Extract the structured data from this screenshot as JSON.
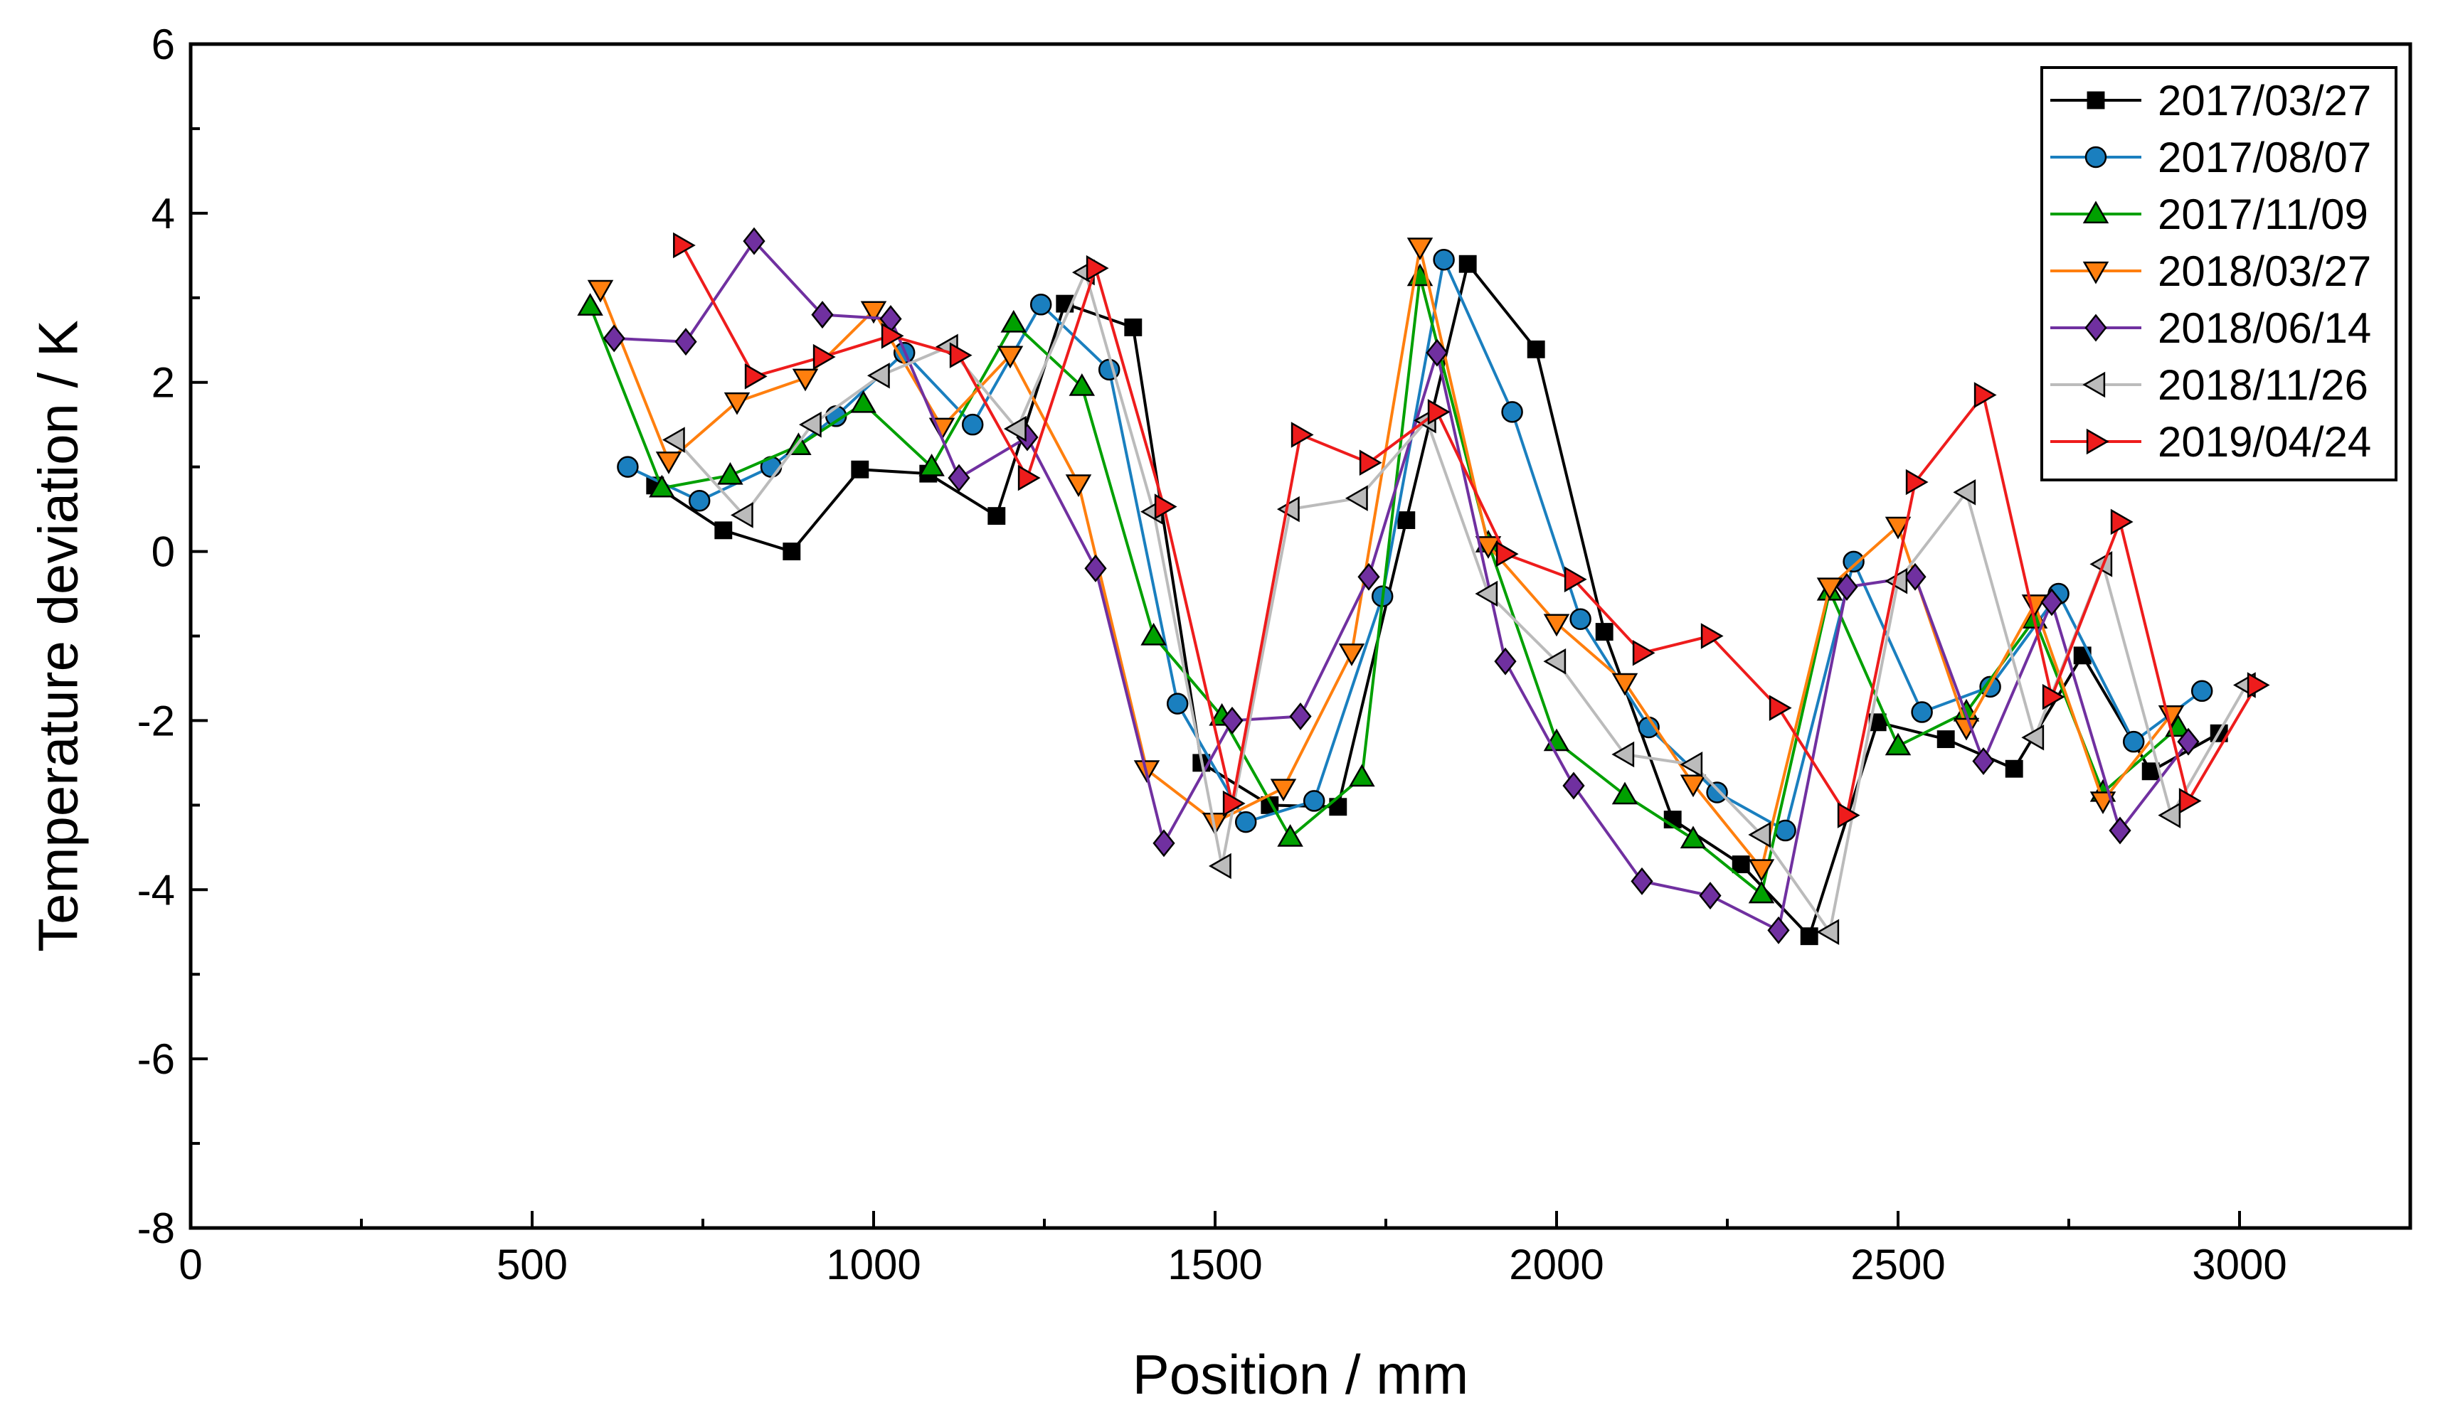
{
  "chart_data": {
    "type": "line",
    "xlabel": "Position / mm",
    "ylabel": "Temperature deviation / K",
    "xlim": [
      0,
      3250
    ],
    "ylim": [
      -8,
      6
    ],
    "xticks": [
      0,
      500,
      1000,
      1500,
      2000,
      2500,
      3000
    ],
    "yticks": [
      -8,
      -6,
      -4,
      -2,
      0,
      2,
      4,
      6
    ],
    "xtick_labels": [
      "0",
      "500",
      "1000",
      "1500",
      "2000",
      "2500",
      "3000"
    ],
    "ytick_labels": [
      "-8",
      "-6",
      "-4",
      "-2",
      "0",
      "2",
      "4",
      "6"
    ],
    "legend_position": "top-right",
    "series": [
      {
        "name": "2017/03/27",
        "color": "#000000",
        "marker": "square",
        "x": [
          680,
          780,
          880,
          980,
          1080,
          1180,
          1280,
          1380,
          1480,
          1580,
          1680,
          1780,
          1870,
          1970,
          2070,
          2170,
          2270,
          2370,
          2470,
          2570,
          2670,
          2770,
          2870,
          2970
        ],
        "y": [
          0.78,
          0.25,
          0.0,
          0.97,
          0.92,
          0.42,
          2.93,
          2.65,
          -2.5,
          -3.0,
          -3.02,
          0.37,
          3.4,
          2.39,
          -0.95,
          -3.17,
          -3.7,
          -4.55,
          -2.02,
          -2.22,
          -2.57,
          -1.23,
          -2.6,
          -2.15
        ]
      },
      {
        "name": "2017/08/07",
        "color": "#1a7fbf",
        "marker": "circle",
        "x": [
          640,
          745,
          850,
          945,
          1045,
          1145,
          1245,
          1345,
          1445,
          1545,
          1645,
          1745,
          1835,
          1935,
          2035,
          2135,
          2235,
          2335,
          2435,
          2535,
          2635,
          2735,
          2845,
          2945
        ],
        "y": [
          1.0,
          0.6,
          1.0,
          1.6,
          2.35,
          1.5,
          2.92,
          2.15,
          -1.8,
          -3.2,
          -2.95,
          -0.53,
          3.45,
          1.65,
          -0.8,
          -2.08,
          -2.85,
          -3.3,
          -0.12,
          -1.9,
          -1.6,
          -0.5,
          -2.25,
          -1.65
        ]
      },
      {
        "name": "2017/11/09",
        "color": "#00a000",
        "marker": "triangle-up",
        "x": [
          585,
          690,
          790,
          890,
          985,
          1085,
          1205,
          1305,
          1410,
          1510,
          1610,
          1715,
          1800,
          1900,
          2000,
          2100,
          2200,
          2300,
          2400,
          2500,
          2600,
          2700,
          2800,
          2910
        ],
        "y": [
          2.9,
          0.75,
          0.9,
          1.25,
          1.75,
          1.0,
          2.7,
          1.95,
          -1.0,
          -1.95,
          -3.38,
          -2.67,
          3.25,
          0.1,
          -2.25,
          -2.88,
          -3.4,
          -4.05,
          -0.47,
          -2.3,
          -1.9,
          -0.8,
          -2.85,
          -2.08
        ]
      },
      {
        "name": "2018/03/27",
        "color": "#ff7f0e",
        "marker": "triangle-down",
        "x": [
          600,
          700,
          800,
          900,
          1000,
          1100,
          1200,
          1300,
          1400,
          1500,
          1600,
          1700,
          1800,
          1900,
          2000,
          2100,
          2200,
          2300,
          2400,
          2500,
          2600,
          2700,
          2800,
          2900
        ],
        "y": [
          3.1,
          1.07,
          1.77,
          2.05,
          2.85,
          1.47,
          2.32,
          0.8,
          -2.58,
          -3.2,
          -2.8,
          -1.2,
          3.6,
          0.07,
          -0.85,
          -1.55,
          -2.75,
          -3.75,
          -0.42,
          0.3,
          -2.08,
          -0.62,
          -2.95,
          -1.93
        ]
      },
      {
        "name": "2018/06/14",
        "color": "#7030a0",
        "marker": "diamond",
        "x": [
          620,
          725,
          825,
          925,
          1025,
          1125,
          1225,
          1325,
          1425,
          1525,
          1625,
          1725,
          1825,
          1925,
          2025,
          2125,
          2225,
          2325,
          2425,
          2525,
          2625,
          2725,
          2825,
          2925
        ],
        "y": [
          2.52,
          2.48,
          3.67,
          2.8,
          2.75,
          0.87,
          1.35,
          -0.2,
          -3.45,
          -2.0,
          -1.95,
          -0.3,
          2.35,
          -1.3,
          -2.77,
          -3.9,
          -4.07,
          -4.48,
          -0.42,
          -0.3,
          -2.48,
          -0.6,
          -3.3,
          -2.25
        ]
      },
      {
        "name": "2018/11/26",
        "color": "#bbbbbb",
        "marker": "triangle-left",
        "x": [
          710,
          810,
          910,
          1010,
          1110,
          1210,
          1310,
          1410,
          1510,
          1610,
          1710,
          1810,
          1900,
          2000,
          2100,
          2200,
          2300,
          2400,
          2500,
          2600,
          2700,
          2800,
          2900,
          3010
        ],
        "y": [
          1.32,
          0.43,
          1.5,
          2.08,
          2.42,
          1.45,
          3.3,
          0.47,
          -3.72,
          0.5,
          0.63,
          1.55,
          -0.5,
          -1.3,
          -2.4,
          -2.52,
          -3.35,
          -4.5,
          -0.35,
          0.7,
          -2.2,
          -0.15,
          -3.12,
          -1.58
        ]
      },
      {
        "name": "2019/04/24",
        "color": "#ee1c1c",
        "marker": "triangle-right",
        "x": [
          720,
          825,
          925,
          1025,
          1125,
          1225,
          1325,
          1425,
          1525,
          1625,
          1725,
          1825,
          1925,
          2025,
          2125,
          2225,
          2325,
          2425,
          2525,
          2625,
          2725,
          2825,
          2925,
          3025
        ],
        "y": [
          3.62,
          2.07,
          2.3,
          2.55,
          2.32,
          0.87,
          3.35,
          0.53,
          -2.98,
          1.38,
          1.05,
          1.65,
          -0.03,
          -0.33,
          -1.2,
          -1.0,
          -1.85,
          -3.12,
          0.82,
          1.85,
          -1.72,
          0.35,
          -2.95,
          -1.58
        ]
      }
    ]
  }
}
